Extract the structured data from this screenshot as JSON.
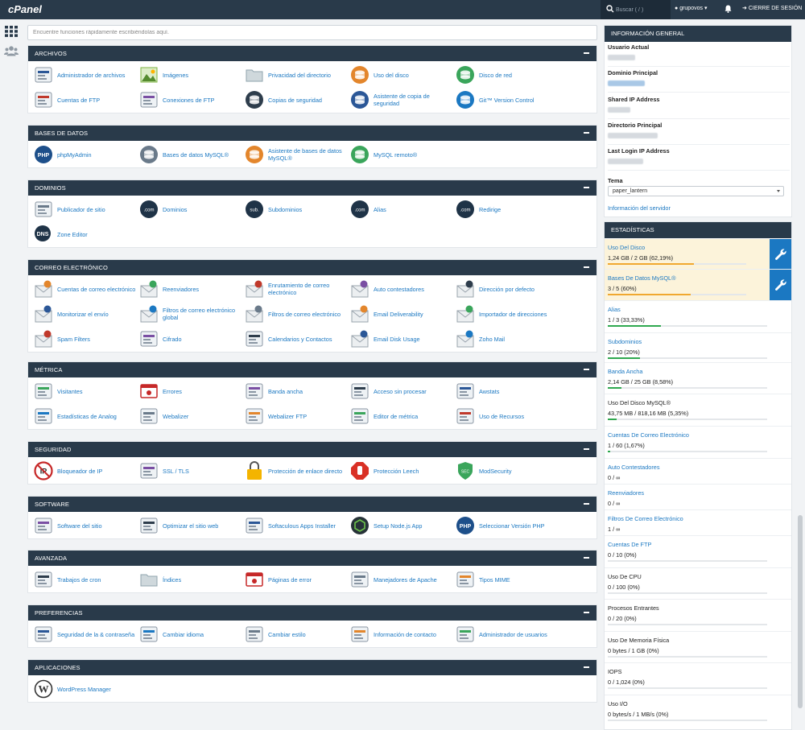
{
  "topbar": {
    "logo": "cPanel",
    "search_placeholder": "Buscar ( / )",
    "user": "grupovos",
    "logout": "CIERRE DE SESIÓN"
  },
  "main_search": {
    "placeholder": "Encuentre funciones rápidamente escribiéndolas aquí."
  },
  "groups": [
    {
      "title": "ARCHIVOS",
      "items": [
        {
          "label": "Administrador de archivos",
          "icon": "file-manager-icon"
        },
        {
          "label": "Imágenes",
          "icon": "images-icon"
        },
        {
          "label": "Privacidad del directorio",
          "icon": "folder-privacy-icon"
        },
        {
          "label": "Uso del disco",
          "icon": "disk-usage-icon"
        },
        {
          "label": "Disco de red",
          "icon": "network-disk-icon"
        },
        {
          "label": "Cuentas de FTP",
          "icon": "ftp-accounts-icon"
        },
        {
          "label": "Conexiones de FTP",
          "icon": "ftp-connections-icon"
        },
        {
          "label": "Copias de seguridad",
          "icon": "backup-icon"
        },
        {
          "label": "Asistente de copia de seguridad",
          "icon": "backup-wizard-icon"
        },
        {
          "label": "Git™ Version Control",
          "icon": "git-icon"
        }
      ]
    },
    {
      "title": "BASES DE DATOS",
      "items": [
        {
          "label": "phpMyAdmin",
          "icon": "phpmyadmin-icon"
        },
        {
          "label": "Bases de datos MySQL®",
          "icon": "mysql-databases-icon"
        },
        {
          "label": "Asistente de bases de datos MySQL®",
          "icon": "mysql-wizard-icon"
        },
        {
          "label": "MySQL remoto®",
          "icon": "remote-mysql-icon"
        }
      ]
    },
    {
      "title": "DOMINIOS",
      "items": [
        {
          "label": "Publicador de sitio",
          "icon": "site-publisher-icon"
        },
        {
          "label": "Dominios",
          "icon": "domains-icon"
        },
        {
          "label": "Subdominios",
          "icon": "subdomains-icon"
        },
        {
          "label": "Alias",
          "icon": "aliases-icon"
        },
        {
          "label": "Redirige",
          "icon": "redirects-icon"
        },
        {
          "label": "Zone Editor",
          "icon": "zone-editor-icon"
        }
      ]
    },
    {
      "title": "CORREO ELECTRÓNICO",
      "items": [
        {
          "label": "Cuentas de correo electrónico",
          "icon": "email-accounts-icon"
        },
        {
          "label": "Reenviadores",
          "icon": "forwarders-icon"
        },
        {
          "label": "Enrutamiento de correo electrónico",
          "icon": "email-routing-icon"
        },
        {
          "label": "Auto contestadores",
          "icon": "autoresponders-icon"
        },
        {
          "label": "Dirección por defecto",
          "icon": "default-address-icon"
        },
        {
          "label": "Monitorizar el envío",
          "icon": "track-delivery-icon"
        },
        {
          "label": "Filtros de correo electrónico global",
          "icon": "global-filters-icon"
        },
        {
          "label": "Filtros de correo electrónico",
          "icon": "email-filters-icon"
        },
        {
          "label": "Email Deliverability",
          "icon": "email-deliverability-icon"
        },
        {
          "label": "Importador de direcciones",
          "icon": "address-importer-icon"
        },
        {
          "label": "Spam Filters",
          "icon": "spam-filters-icon"
        },
        {
          "label": "Cifrado",
          "icon": "encryption-icon"
        },
        {
          "label": "Calendarios y Contactos",
          "icon": "calendars-icon"
        },
        {
          "label": "Email Disk Usage",
          "icon": "email-disk-usage-icon"
        },
        {
          "label": "Zoho Mail",
          "icon": "zoho-mail-icon"
        }
      ]
    },
    {
      "title": "MÉTRICA",
      "items": [
        {
          "label": "Visitantes",
          "icon": "visitors-icon"
        },
        {
          "label": "Errores",
          "icon": "errors-icon"
        },
        {
          "label": "Banda ancha",
          "icon": "bandwidth-icon"
        },
        {
          "label": "Acceso sin procesar",
          "icon": "raw-access-icon"
        },
        {
          "label": "Awstats",
          "icon": "awstats-icon"
        },
        {
          "label": "Estadísticas de Analog",
          "icon": "analog-stats-icon"
        },
        {
          "label": "Webalizer",
          "icon": "webalizer-icon"
        },
        {
          "label": "Webalizer FTP",
          "icon": "webalizer-ftp-icon"
        },
        {
          "label": "Editor de métrica",
          "icon": "metrics-editor-icon"
        },
        {
          "label": "Uso de Recursos",
          "icon": "resource-usage-icon"
        }
      ]
    },
    {
      "title": "SEGURIDAD",
      "items": [
        {
          "label": "Bloqueador de IP",
          "icon": "ip-blocker-icon"
        },
        {
          "label": "SSL / TLS",
          "icon": "ssl-tls-icon"
        },
        {
          "label": "Protección de enlace directo",
          "icon": "hotlink-protection-icon"
        },
        {
          "label": "Protección Leech",
          "icon": "leech-protection-icon"
        },
        {
          "label": "ModSecurity",
          "icon": "modsecurity-icon"
        }
      ]
    },
    {
      "title": "SOFTWARE",
      "items": [
        {
          "label": "Software del sitio",
          "icon": "site-software-icon"
        },
        {
          "label": "Optimizar el sitio web",
          "icon": "optimize-website-icon"
        },
        {
          "label": "Softaculous Apps Installer",
          "icon": "softaculous-icon"
        },
        {
          "label": "Setup Node.js App",
          "icon": "nodejs-icon"
        },
        {
          "label": "Seleccionar Versión PHP",
          "icon": "php-icon"
        }
      ]
    },
    {
      "title": "AVANZADA",
      "items": [
        {
          "label": "Trabajos de cron",
          "icon": "cron-icon"
        },
        {
          "label": "Índices",
          "icon": "indexes-icon"
        },
        {
          "label": "Páginas de error",
          "icon": "error-pages-icon"
        },
        {
          "label": "Manejadores de Apache",
          "icon": "apache-handlers-icon"
        },
        {
          "label": "Tipos MIME",
          "icon": "mime-types-icon"
        }
      ]
    },
    {
      "title": "PREFERENCIAS",
      "items": [
        {
          "label": "Seguridad de la & contraseña",
          "icon": "password-security-icon"
        },
        {
          "label": "Cambiar idioma",
          "icon": "change-language-icon"
        },
        {
          "label": "Cambiar estilo",
          "icon": "change-style-icon"
        },
        {
          "label": "Información de contacto",
          "icon": "contact-info-icon"
        },
        {
          "label": "Administrador de usuarios",
          "icon": "user-manager-icon"
        }
      ]
    },
    {
      "title": "APLICACIONES",
      "items": [
        {
          "label": "WordPress Manager",
          "icon": "wordpress-icon"
        }
      ]
    }
  ],
  "general_info": {
    "title": "INFORMACIÓN GENERAL",
    "rows": [
      {
        "label": "Usuario Actual"
      },
      {
        "label": "Dominio Principal"
      },
      {
        "label": "Shared IP Address"
      },
      {
        "label": "Directorio Principal"
      },
      {
        "label": "Last Login IP Address"
      }
    ],
    "theme_label": "Tema",
    "theme_value": "paper_lantern",
    "server_info_link": "Información del servidor"
  },
  "stats": {
    "title": "ESTADÍSTICAS",
    "items": [
      {
        "label": "Uso Del Disco",
        "value": "1,24 GB / 2 GB   (62,19%)",
        "percent": 62.19,
        "link": true,
        "warn": true
      },
      {
        "label": "Bases De Datos MySQL®",
        "value": "3 / 5   (60%)",
        "percent": 60,
        "link": true,
        "warn": true
      },
      {
        "label": "Alias",
        "value": "1 / 3   (33,33%)",
        "percent": 33.33,
        "link": true
      },
      {
        "label": "Subdominios",
        "value": "2 / 10   (20%)",
        "percent": 20,
        "link": true
      },
      {
        "label": "Banda Ancha",
        "value": "2,14 GB / 25 GB   (8,58%)",
        "percent": 8.58,
        "link": true
      },
      {
        "label": "Uso Del Disco MySQL®",
        "value": "43,75 MB / 818,16 MB   (5,35%)",
        "percent": 5.35,
        "link": false
      },
      {
        "label": "Cuentas De Correo Electrónico",
        "value": "1 / 60   (1,67%)",
        "percent": 1.67,
        "link": true
      },
      {
        "label": "Auto Contestadores",
        "value": "0 / ∞",
        "link": true
      },
      {
        "label": "Reenviadores",
        "value": "0 / ∞",
        "link": true
      },
      {
        "label": "Filtros De Correo Electrónico",
        "value": "1 / ∞",
        "link": true
      },
      {
        "label": "Cuentas De FTP",
        "value": "0 / 10   (0%)",
        "percent": 0,
        "link": true
      },
      {
        "label": "Uso De CPU",
        "value": "0 / 100   (0%)",
        "percent": 0,
        "link": false
      },
      {
        "label": "Procesos Entrantes",
        "value": "0 / 20   (0%)",
        "percent": 0,
        "link": false
      },
      {
        "label": "Uso De Memoria Física",
        "value": "0 bytes / 1 GB   (0%)",
        "percent": 0,
        "link": false
      },
      {
        "label": "IOPS",
        "value": "0 / 1,024   (0%)",
        "percent": 0,
        "link": false
      },
      {
        "label": "Uso I/O",
        "value": "0 bytes/s / 1 MB/s   (0%)",
        "percent": 0,
        "link": false
      }
    ]
  },
  "colors": {
    "header": "#293a4a",
    "link": "#1b78c2",
    "warn_bg": "#fcf3da",
    "warn_bar": "#f0a830",
    "ok_bar": "#2fa84f"
  }
}
